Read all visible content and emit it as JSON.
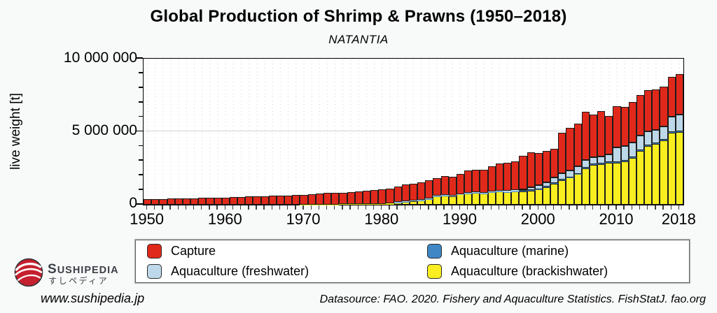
{
  "page": {
    "background": "#f8f9f9"
  },
  "chart_data": {
    "type": "bar",
    "stacked": true,
    "title": "Global Production of Shrimp & Prawns (1950–2018)",
    "subtitle": "NATANTIA",
    "ylabel": "live weight [t]",
    "ylim": [
      0,
      10000000
    ],
    "y_ticks": [
      "0",
      "5 000 000",
      "10 000 000"
    ],
    "y_tick_values": [
      0,
      5000000,
      10000000
    ],
    "y_minor_tick_step": 1000000,
    "grid": "dotted",
    "legend_position": "bottom",
    "x_start": 1950,
    "x_end": 2018,
    "x_tick_step": 1,
    "x_tick_label_years": [
      1950,
      1960,
      1970,
      1980,
      1990,
      2000,
      2010,
      2018
    ],
    "series": [
      {
        "name": "Aquaculture (brackishwater)",
        "color": "#f8ee20",
        "values": [
          0,
          0,
          0,
          0,
          0,
          0,
          0,
          0,
          0,
          0,
          0,
          0,
          0,
          0,
          0,
          0,
          0,
          0,
          0,
          0,
          10000,
          10000,
          12000,
          15000,
          20000,
          25000,
          30000,
          40000,
          45000,
          50000,
          60000,
          80000,
          160000,
          210000,
          260000,
          290000,
          380000,
          570000,
          620000,
          590000,
          700000,
          770000,
          810000,
          770000,
          860000,
          890000,
          860000,
          890000,
          920000,
          970000,
          1050000,
          1210000,
          1450000,
          1690000,
          1850000,
          2090000,
          2490000,
          2730000,
          2780000,
          2890000,
          2890000,
          2970000,
          3210000,
          3680000,
          4000000,
          4160000,
          4400000,
          4910000,
          4960000
        ]
      },
      {
        "name": "Aquaculture (marine)",
        "color": "#3f87c5",
        "values": [
          0,
          0,
          0,
          0,
          0,
          0,
          0,
          0,
          0,
          0,
          0,
          0,
          0,
          0,
          0,
          0,
          0,
          0,
          0,
          0,
          0,
          0,
          0,
          0,
          0,
          0,
          0,
          0,
          0,
          0,
          0,
          0,
          5000,
          5000,
          8000,
          8000,
          10000,
          10000,
          10000,
          10000,
          10000,
          12000,
          12000,
          12000,
          15000,
          15000,
          15000,
          18000,
          18000,
          20000,
          20000,
          22000,
          25000,
          28000,
          30000,
          32000,
          35000,
          38000,
          40000,
          40000,
          42000,
          42000,
          45000,
          48000,
          50000,
          52000,
          55000,
          58000,
          60000
        ]
      },
      {
        "name": "Aquaculture (freshwater)",
        "color": "#bdd8e9",
        "values": [
          0,
          0,
          0,
          0,
          0,
          0,
          0,
          0,
          0,
          0,
          0,
          0,
          0,
          0,
          0,
          0,
          0,
          0,
          0,
          0,
          0,
          0,
          0,
          0,
          0,
          0,
          0,
          0,
          0,
          0,
          0,
          0,
          8000,
          10000,
          12000,
          15000,
          18000,
          20000,
          22000,
          25000,
          25000,
          28000,
          30000,
          35000,
          40000,
          50000,
          60000,
          80000,
          130000,
          220000,
          280000,
          320000,
          400000,
          450000,
          480000,
          500000,
          520000,
          480000,
          500000,
          510000,
          990000,
          990000,
          990000,
          990000,
          990000,
          910000,
          910000,
          1060000,
          1170000
        ]
      },
      {
        "name": "Capture",
        "color": "#e0291b",
        "values": [
          370000,
          395000,
          400000,
          410000,
          425000,
          440000,
          455000,
          460000,
          480000,
          490000,
          500000,
          525000,
          530000,
          555000,
          565000,
          585000,
          600000,
          620000,
          645000,
          660000,
          680000,
          710000,
          765000,
          780000,
          795000,
          810000,
          845000,
          885000,
          920000,
          965000,
          985000,
          1000000,
          1060000,
          1170000,
          1170000,
          1240000,
          1280000,
          1200000,
          1330000,
          1280000,
          1370000,
          1530000,
          1530000,
          1600000,
          1740000,
          1860000,
          1930000,
          1980000,
          2290000,
          2390000,
          2180000,
          2130000,
          1970000,
          2740000,
          2920000,
          2930000,
          3300000,
          2910000,
          3080000,
          2640000,
          2840000,
          2710000,
          2790000,
          2790000,
          2790000,
          2790000,
          2710000,
          2710000,
          2760000
        ]
      }
    ]
  },
  "legend": {
    "items": [
      {
        "label": "Capture",
        "color": "#e0291b"
      },
      {
        "label": "Aquaculture (marine)",
        "color": "#3f87c5"
      },
      {
        "label": "Aquaculture (freshwater)",
        "color": "#bdd8e9"
      },
      {
        "label": "Aquaculture (brackishwater)",
        "color": "#f8ee20"
      }
    ]
  },
  "branding": {
    "wordmark": "SUSHIPEDIA",
    "japanese": "すしペディア",
    "logo_color": "#c5202e"
  },
  "footer": {
    "website": "www.sushipedia.jp",
    "datasource": "Datasource: FAO. 2020. Fishery and Aquaculture Statistics. FishStatJ. fao.org"
  }
}
